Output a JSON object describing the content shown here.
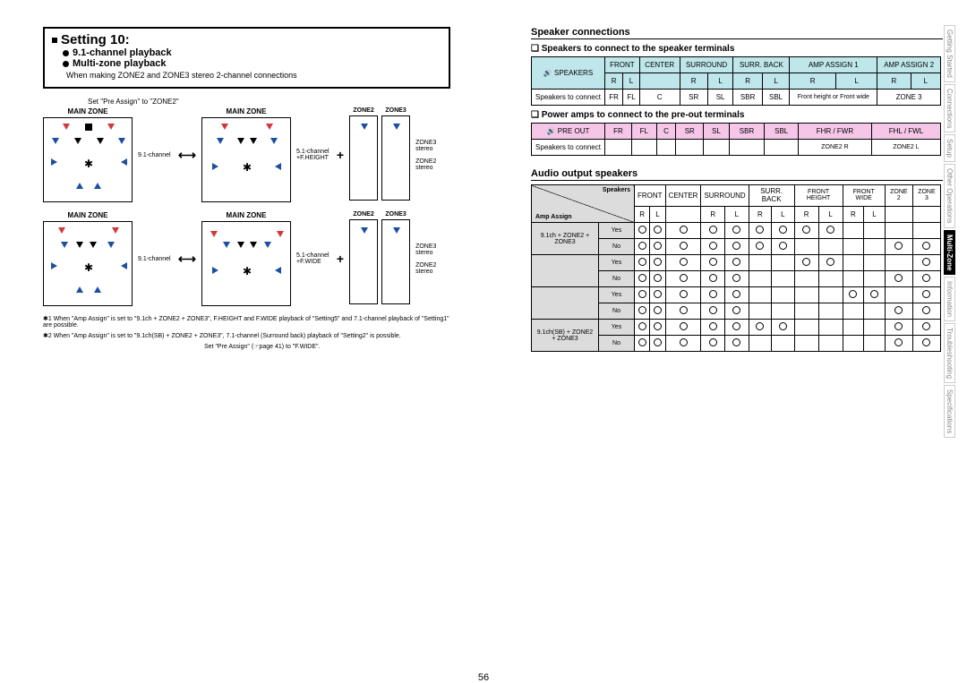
{
  "setting": {
    "title": "Setting 10: ",
    "item1": "9.1-channel playback",
    "item2": "Multi-zone playback",
    "note": "When making ZONE2 and ZONE3 stereo 2-channel connections"
  },
  "colors": {
    "blue": "#bfe6eb",
    "pink": "#f5c6e8",
    "grey": "#dcdcdc",
    "red": "#d4373b",
    "darkblue": "#1c4ea1"
  },
  "zoneLabels": {
    "main": "MAIN ZONE",
    "z2": "ZONE2",
    "z3": "ZONE3"
  },
  "diagText": {
    "t91": "9.1-channel",
    "t51": "5.1-channel",
    "z3st": "ZONE3 stereo",
    "z2st": "ZONE2 stereo",
    "t51fh": "5.1-channel +F.HEIGHT",
    "t51fw": "5.1-channel +F.WIDE"
  },
  "notes": {
    "n1": "When \"Amp Assign\" is set to \"9.1ch + ZONE2 + ZONE3\", F.HEIGHT and F.WIDE playback of \"Setting5\" and 7.1-channel playback of \"Setting1\" are possible.",
    "n2": "When \"Amp Assign\" is set to \"9.1ch(SB) + ZONE2 + ZONE3\", 7.1-channel (Surround back) playback of \"Setting2\" is possible.",
    "pre": "Set \"Pre Assign\" (☞page 41) to \"F.WIDE\"."
  },
  "headers": {
    "speakerConn": "Speaker connections",
    "sub1": "Speakers to connect to the speaker terminals",
    "sub2": "Power amps to connect to the pre-out terminals",
    "audioOut": "Audio output speakers"
  },
  "table1": {
    "cols": [
      "SPEAKERS",
      "FRONT",
      "CENTER",
      "SURROUND",
      "SURR. BACK",
      "AMP ASSIGN 1",
      "AMP ASSIGN 2"
    ],
    "rl": [
      "R",
      "L",
      "",
      "R",
      "L",
      "R",
      "L",
      "R",
      "L",
      "R",
      "L"
    ],
    "rowLabel": "Speakers to connect",
    "cells": [
      "FR",
      "FL",
      "C",
      "SR",
      "SL",
      "SBR",
      "SBL",
      "Front height or Front wide",
      "ZONE 3"
    ]
  },
  "table2": {
    "cols": [
      "PRE OUT",
      "FR",
      "FL",
      "C",
      "SR",
      "SL",
      "SBR",
      "SBL",
      "FHR / FWR",
      "FHL / FWL"
    ],
    "rowLabel": "Speakers to connect",
    "cells": [
      "",
      "",
      "",
      "",
      "",
      "",
      "",
      "ZONE2 R",
      "ZONE2 L"
    ]
  },
  "table3": {
    "diag1": "Speakers",
    "diag2": "Amp Assign",
    "cols": [
      "FRONT",
      "CENTER",
      "SURROUND",
      "SURR. BACK",
      "FRONT HEIGHT",
      "FRONT WIDE",
      "ZONE 2",
      "ZONE 3"
    ],
    "rl": [
      "R",
      "L",
      "",
      "R",
      "L",
      "R",
      "L",
      "R",
      "L",
      "R",
      "L",
      "",
      ""
    ],
    "rows": [
      {
        "label": "9.1ch + ZONE2 + ZONE3",
        "sub": "Yes",
        "o": [
          1,
          1,
          1,
          1,
          1,
          1,
          1,
          1,
          1,
          0,
          0,
          0,
          0
        ]
      },
      {
        "label": "",
        "sub": "No",
        "o": [
          1,
          1,
          1,
          1,
          1,
          1,
          1,
          0,
          0,
          0,
          0,
          1,
          1
        ]
      },
      {
        "label": "",
        "sub": "Yes",
        "o": [
          1,
          1,
          1,
          1,
          1,
          0,
          0,
          1,
          1,
          0,
          0,
          0,
          1
        ]
      },
      {
        "label": "",
        "sub": "No",
        "o": [
          1,
          1,
          1,
          1,
          1,
          0,
          0,
          0,
          0,
          0,
          0,
          1,
          1
        ]
      },
      {
        "label": "",
        "sub": "Yes",
        "o": [
          1,
          1,
          1,
          1,
          1,
          0,
          0,
          0,
          0,
          1,
          1,
          0,
          1
        ]
      },
      {
        "label": "",
        "sub": "No",
        "o": [
          1,
          1,
          1,
          1,
          1,
          0,
          0,
          0,
          0,
          0,
          0,
          1,
          1
        ]
      },
      {
        "label": "9.1ch(SB) + ZONE2 + ZONE3",
        "sub": "Yes",
        "o": [
          1,
          1,
          1,
          1,
          1,
          1,
          1,
          0,
          0,
          0,
          0,
          1,
          1
        ]
      },
      {
        "label": "",
        "sub": "No",
        "o": [
          1,
          1,
          1,
          1,
          1,
          0,
          0,
          0,
          0,
          0,
          0,
          1,
          1
        ]
      }
    ]
  },
  "sideTabs": [
    "Getting Started",
    "Connections",
    "Setup",
    "Other Operations",
    "Multi-Zone",
    "Information",
    "Troubleshooting",
    "Specifications"
  ],
  "activeTab": 4,
  "pageNum": "56"
}
